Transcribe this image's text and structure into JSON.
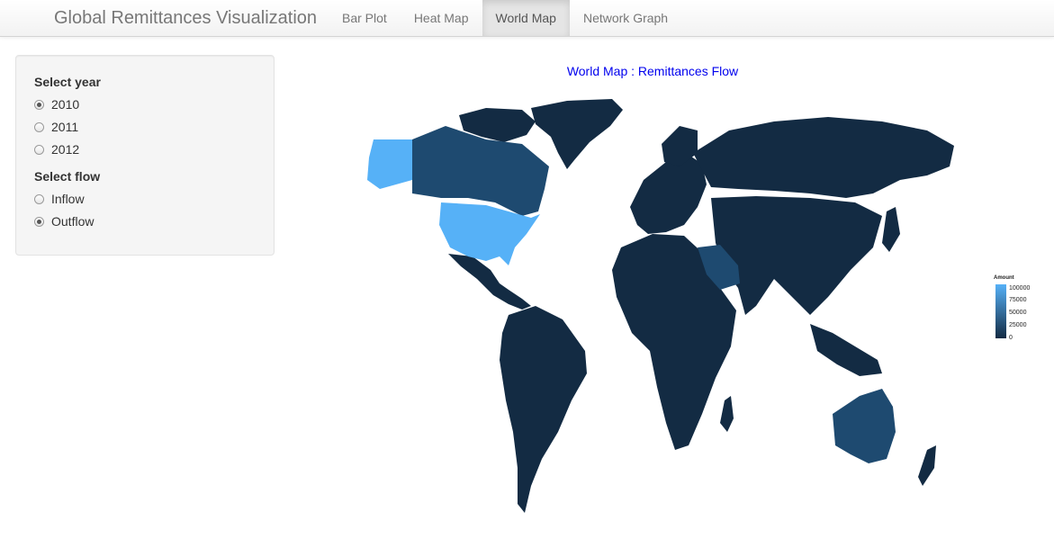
{
  "navbar": {
    "brand": "Global Remittances Visualization",
    "tabs": [
      {
        "label": "Bar Plot",
        "active": false
      },
      {
        "label": "Heat Map",
        "active": false
      },
      {
        "label": "World Map",
        "active": true
      },
      {
        "label": "Network Graph",
        "active": false
      }
    ]
  },
  "sidebar": {
    "year_label": "Select year",
    "years": [
      {
        "label": "2010",
        "checked": true
      },
      {
        "label": "2011",
        "checked": false
      },
      {
        "label": "2012",
        "checked": false
      }
    ],
    "flow_label": "Select flow",
    "flows": [
      {
        "label": "Inflow",
        "checked": false
      },
      {
        "label": "Outflow",
        "checked": true
      }
    ]
  },
  "map": {
    "title": "World Map : Remittances Flow",
    "colors": {
      "low": "#132b43",
      "high": "#56b1f7",
      "mid": "#1e4a70"
    },
    "legend": {
      "title": "Amount",
      "ticks": [
        "100000",
        "75000",
        "50000",
        "25000",
        "0"
      ]
    }
  }
}
